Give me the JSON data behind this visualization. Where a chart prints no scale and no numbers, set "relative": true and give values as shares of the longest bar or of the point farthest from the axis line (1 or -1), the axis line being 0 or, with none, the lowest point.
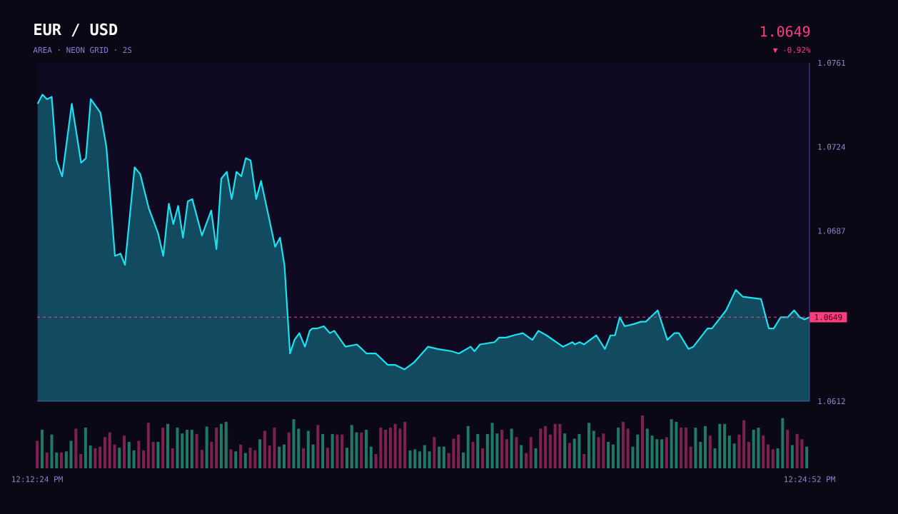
{
  "chart_data": [
    {
      "type": "area",
      "title": "EUR / USD",
      "subtitle": "AREA · NEON GRID · 2S",
      "annotations": [
        "1.0649",
        "▼ -0.92%"
      ],
      "x": [
        12.2068,
        12.2081,
        12.2093,
        12.2106,
        12.2119,
        12.2134,
        12.216,
        12.2185,
        12.2198,
        12.2211,
        12.2237,
        12.2253,
        12.2276,
        12.2291,
        12.2303,
        12.2329,
        12.2344,
        12.2367,
        12.2392,
        12.2406,
        12.2421,
        12.2433,
        12.2446,
        12.2459,
        12.2472,
        12.2484,
        12.251,
        12.2535,
        12.2549,
        12.2562,
        12.2577,
        12.259,
        12.2603,
        12.2616,
        12.2628,
        12.2641,
        12.2656,
        12.2669,
        12.2707,
        12.272,
        12.2732,
        12.2747,
        12.2759,
        12.2772,
        12.2787,
        12.28,
        12.2807,
        12.2819,
        12.2838,
        12.2854,
        12.2866,
        12.2896,
        12.2927,
        12.2953,
        12.2978,
        12.301,
        12.3029,
        12.3055,
        12.308,
        12.3118,
        12.3144,
        12.3182,
        12.3201,
        12.3233,
        12.3243,
        12.3258,
        12.3297,
        12.3309,
        12.3328,
        12.3348,
        12.3373,
        12.3399,
        12.3415,
        12.3437,
        12.3481,
        12.3507,
        12.3513,
        12.3526,
        12.3538,
        12.3571,
        12.3594,
        12.3609,
        12.3621,
        12.3634,
        12.3647,
        12.3672,
        12.3691,
        12.3704,
        12.3736,
        12.3762,
        12.3781,
        12.3793,
        12.3819,
        12.3832,
        12.387,
        12.3882,
        12.392,
        12.3946,
        12.3965,
        12.4014,
        12.4035,
        12.4048,
        12.4067,
        12.4086,
        12.4103,
        12.4118,
        12.4131,
        12.4144
      ],
      "series": [
        {
          "color": "#19e3f0",
          "values": [
            1.0743,
            1.0747,
            1.0745,
            1.0746,
            1.0718,
            1.0711,
            1.0743,
            1.0717,
            1.0719,
            1.0745,
            1.0739,
            1.0724,
            1.0676,
            1.0677,
            1.0672,
            1.0715,
            1.0712,
            1.0697,
            1.0686,
            1.0676,
            1.0699,
            1.069,
            1.0698,
            1.0684,
            1.07,
            1.0701,
            1.0685,
            1.0696,
            1.0679,
            1.071,
            1.0713,
            1.0701,
            1.0713,
            1.0711,
            1.0719,
            1.0718,
            1.0701,
            1.0709,
            1.068,
            1.0684,
            1.0672,
            1.0633,
            1.0639,
            1.0642,
            1.0636,
            1.0643,
            1.0644,
            1.0644,
            1.0645,
            1.0642,
            1.0643,
            1.0636,
            1.0637,
            1.0633,
            1.0633,
            1.0628,
            1.0628,
            1.0626,
            1.0629,
            1.0636,
            1.0635,
            1.0634,
            1.0633,
            1.0636,
            1.0634,
            1.0637,
            1.0638,
            1.064,
            1.064,
            1.0641,
            1.0642,
            1.0639,
            1.0643,
            1.0641,
            1.0636,
            1.0638,
            1.0637,
            1.0638,
            1.0637,
            1.0641,
            1.0635,
            1.0641,
            1.0641,
            1.0649,
            1.0645,
            1.0646,
            1.0647,
            1.0647,
            1.0652,
            1.0639,
            1.0642,
            1.0642,
            1.0635,
            1.0636,
            1.0644,
            1.0644,
            1.0652,
            1.0661,
            1.0658,
            1.0657,
            1.0644,
            1.0644,
            1.0649,
            1.0649,
            1.0652,
            1.0649,
            1.0648,
            1.0649
          ]
        }
      ],
      "xlim": [
        12.20667,
        12.41444
      ],
      "ylim": [
        1.0612,
        1.0761
      ],
      "yticks": [
        1.0612,
        1.0687,
        1.0724,
        1.0761
      ],
      "tick_labels": "y",
      "ref_lines": [
        {
          "axis": "y",
          "value": 1.0649,
          "label": "1.0649",
          "color": "#ff3d7f",
          "line_style": "dashed"
        }
      ]
    },
    {
      "type": "bar",
      "relative": true,
      "xlim": [
        12.20667,
        12.41444
      ],
      "xticks": [
        {
          "value": 12.20667,
          "label": "12:12:24 PM"
        },
        {
          "value": 12.41444,
          "label": "12:24:52 PM"
        }
      ],
      "x": [
        12.2067,
        12.208,
        12.2093,
        12.2106,
        12.2119,
        12.2132,
        12.2145,
        12.2158,
        12.2171,
        12.2184,
        12.2197,
        12.221,
        12.2223,
        12.2236,
        12.2249,
        12.2262,
        12.2275,
        12.2288,
        12.2301,
        12.2314,
        12.2327,
        12.234,
        12.2353,
        12.2366,
        12.2379,
        12.2392,
        12.2405,
        12.2418,
        12.2431,
        12.2444,
        12.2457,
        12.247,
        12.2483,
        12.2496,
        12.251,
        12.2523,
        12.2536,
        12.2549,
        12.2562,
        12.2575,
        12.2588,
        12.2601,
        12.2614,
        12.2627,
        12.264,
        12.2653,
        12.2666,
        12.2679,
        12.2692,
        12.2705,
        12.2718,
        12.2731,
        12.2744,
        12.2757,
        12.277,
        12.2783,
        12.2796,
        12.2809,
        12.2822,
        12.2835,
        12.2848,
        12.2861,
        12.2874,
        12.2887,
        12.29,
        12.2913,
        12.2926,
        12.2939,
        12.2952,
        12.2965,
        12.2978,
        12.2991,
        12.3004,
        12.3017,
        12.303,
        12.3043,
        12.3056,
        12.307,
        12.3083,
        12.3096,
        12.3109,
        12.3122,
        12.3135,
        12.3148,
        12.3161,
        12.3174,
        12.3187,
        12.32,
        12.3213,
        12.3226,
        12.3239,
        12.3252,
        12.3265,
        12.3278,
        12.3291,
        12.3304,
        12.3317,
        12.333,
        12.3343,
        12.3356,
        12.3369,
        12.3382,
        12.3395,
        12.3408,
        12.3421,
        12.3434,
        12.3447,
        12.346,
        12.3473,
        12.3486,
        12.3499,
        12.3512,
        12.3525,
        12.3538,
        12.3551,
        12.3564,
        12.3577,
        12.359,
        12.3603,
        12.3616,
        12.363,
        12.3643,
        12.3656,
        12.3669,
        12.3682,
        12.3695,
        12.3708,
        12.3721,
        12.3734,
        12.3747,
        12.376,
        12.3773,
        12.3786,
        12.3799,
        12.3812,
        12.3825,
        12.3838,
        12.3851,
        12.3864,
        12.3877,
        12.389,
        12.3903,
        12.3916,
        12.3929,
        12.3942,
        12.3955,
        12.3968,
        12.3981,
        12.3994,
        12.4007,
        12.402,
        12.4033,
        12.4046,
        12.4059,
        12.4072,
        12.4085,
        12.4098,
        12.4111,
        12.4124,
        12.4137
      ],
      "values": [
        0.52,
        0.73,
        0.3,
        0.64,
        0.3,
        0.3,
        0.32,
        0.52,
        0.75,
        0.27,
        0.77,
        0.43,
        0.38,
        0.41,
        0.59,
        0.68,
        0.45,
        0.39,
        0.62,
        0.5,
        0.34,
        0.52,
        0.34,
        0.86,
        0.5,
        0.5,
        0.77,
        0.84,
        0.38,
        0.77,
        0.66,
        0.73,
        0.73,
        0.65,
        0.35,
        0.79,
        0.5,
        0.77,
        0.84,
        0.88,
        0.36,
        0.32,
        0.45,
        0.29,
        0.39,
        0.34,
        0.55,
        0.71,
        0.43,
        0.77,
        0.41,
        0.45,
        0.68,
        0.93,
        0.75,
        0.38,
        0.71,
        0.45,
        0.82,
        0.65,
        0.39,
        0.65,
        0.64,
        0.64,
        0.39,
        0.82,
        0.68,
        0.68,
        0.73,
        0.41,
        0.27,
        0.77,
        0.73,
        0.77,
        0.84,
        0.75,
        0.88,
        0.34,
        0.36,
        0.32,
        0.44,
        0.32,
        0.59,
        0.41,
        0.41,
        0.29,
        0.56,
        0.64,
        0.3,
        0.8,
        0.5,
        0.65,
        0.38,
        0.65,
        0.86,
        0.66,
        0.73,
        0.55,
        0.75,
        0.59,
        0.44,
        0.29,
        0.59,
        0.38,
        0.75,
        0.8,
        0.64,
        0.84,
        0.84,
        0.66,
        0.48,
        0.56,
        0.65,
        0.27,
        0.86,
        0.71,
        0.59,
        0.66,
        0.5,
        0.45,
        0.77,
        0.88,
        0.75,
        0.41,
        0.64,
        1,
        0.75,
        0.62,
        0.55,
        0.55,
        0.59,
        0.93,
        0.88,
        0.77,
        0.77,
        0.41,
        0.77,
        0.5,
        0.8,
        0.62,
        0.38,
        0.84,
        0.84,
        0.62,
        0.47,
        0.64,
        0.91,
        0.5,
        0.73,
        0.77,
        0.62,
        0.45,
        0.36,
        0.38,
        0.95,
        0.73,
        0.44,
        0.65,
        0.55,
        0.41
      ],
      "colors": [
        "#7d2150",
        "#1e7a64",
        "#7d2150",
        "#1e7a64",
        "#1e7a64",
        "#7d2150",
        "#1e7a64",
        "#1e7a64",
        "#7d2150",
        "#7d2150",
        "#1e7a64",
        "#1e7a64",
        "#7d2150",
        "#7d2150",
        "#7d2150",
        "#7d2150",
        "#7d2150",
        "#1e7a64",
        "#7d2150",
        "#1e7a64",
        "#1e7a64",
        "#7d2150",
        "#7d2150",
        "#7d2150",
        "#7d2150",
        "#1e7a64",
        "#7d2150",
        "#1e7a64",
        "#7d2150",
        "#1e7a64",
        "#1e7a64",
        "#1e7a64",
        "#1e7a64",
        "#7d2150",
        "#7d2150",
        "#1e7a64",
        "#7d2150",
        "#7d2150",
        "#1e7a64",
        "#1e7a64",
        "#7d2150",
        "#1e7a64",
        "#7d2150",
        "#1e7a64",
        "#7d2150",
        "#7d2150",
        "#1e7a64",
        "#7d2150",
        "#7d2150",
        "#7d2150",
        "#1e7a64",
        "#1e7a64",
        "#7d2150",
        "#1e7a64",
        "#1e7a64",
        "#7d2150",
        "#1e7a64",
        "#1e7a64",
        "#7d2150",
        "#1e7a64",
        "#7d2150",
        "#1e7a64",
        "#7d2150",
        "#7d2150",
        "#1e7a64",
        "#1e7a64",
        "#1e7a64",
        "#7d2150",
        "#1e7a64",
        "#1e7a64",
        "#7d2150",
        "#7d2150",
        "#7d2150",
        "#7d2150",
        "#7d2150",
        "#7d2150",
        "#7d2150",
        "#1e7a64",
        "#1e7a64",
        "#1e7a64",
        "#1e7a64",
        "#1e7a64",
        "#7d2150",
        "#1e7a64",
        "#1e7a64",
        "#7d2150",
        "#7d2150",
        "#7d2150",
        "#1e7a64",
        "#1e7a64",
        "#7d2150",
        "#1e7a64",
        "#7d2150",
        "#1e7a64",
        "#1e7a64",
        "#1e7a64",
        "#7d2150",
        "#7d2150",
        "#1e7a64",
        "#7d2150",
        "#1e7a64",
        "#7d2150",
        "#7d2150",
        "#1e7a64",
        "#7d2150",
        "#7d2150",
        "#7d2150",
        "#7d2150",
        "#7d2150",
        "#1e7a64",
        "#7d2150",
        "#1e7a64",
        "#1e7a64",
        "#7d2150",
        "#1e7a64",
        "#1e7a64",
        "#7d2150",
        "#7d2150",
        "#1e7a64",
        "#1e7a64",
        "#1e7a64",
        "#7d2150",
        "#7d2150",
        "#1e7a64",
        "#1e7a64",
        "#7d2150",
        "#1e7a64",
        "#1e7a64",
        "#1e7a64",
        "#1e7a64",
        "#7d2150",
        "#1e7a64",
        "#1e7a64",
        "#7d2150",
        "#7d2150",
        "#7d2150",
        "#1e7a64",
        "#1e7a64",
        "#1e7a64",
        "#7d2150",
        "#1e7a64",
        "#1e7a64",
        "#1e7a64",
        "#1e7a64",
        "#1e7a64",
        "#7d2150",
        "#7d2150",
        "#7d2150",
        "#1e7a64",
        "#1e7a64",
        "#7d2150",
        "#7d2150",
        "#7d2150",
        "#1e7a64",
        "#1e7a64",
        "#7d2150",
        "#1e7a64",
        "#7d2150",
        "#7d2150",
        "#1e7a64"
      ]
    }
  ]
}
